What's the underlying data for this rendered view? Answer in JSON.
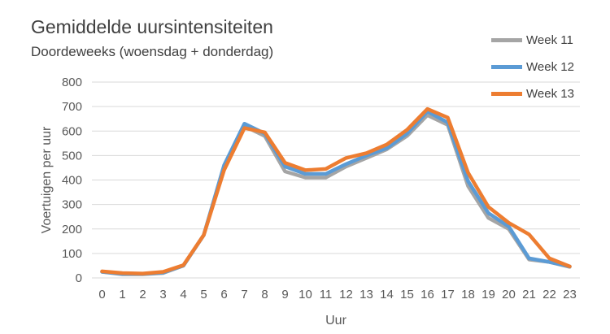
{
  "chart_data": {
    "type": "line",
    "title": "Gemiddelde uursintensiteiten",
    "subtitle": "Doordeweeks (woensdag + donderdag)",
    "xlabel": "Uur",
    "ylabel": "Voertuigen per uur",
    "ylim": [
      0,
      800
    ],
    "yticks": [
      0,
      100,
      200,
      300,
      400,
      500,
      600,
      700,
      800
    ],
    "grid": true,
    "legend_position": "top-right",
    "categories": [
      "0",
      "1",
      "2",
      "3",
      "4",
      "5",
      "6",
      "7",
      "8",
      "9",
      "10",
      "11",
      "12",
      "13",
      "14",
      "15",
      "16",
      "17",
      "18",
      "19",
      "20",
      "21",
      "22",
      "23"
    ],
    "series": [
      {
        "name": "Week 11",
        "color": "#A5A5A5",
        "values": [
          25,
          15,
          15,
          20,
          50,
          175,
          450,
          620,
          580,
          435,
          410,
          410,
          455,
          490,
          525,
          580,
          665,
          625,
          375,
          245,
          200,
          75,
          65,
          45
        ]
      },
      {
        "name": "Week 12",
        "color": "#5B9BD5",
        "values": [
          25,
          17,
          17,
          22,
          50,
          175,
          460,
          630,
          590,
          455,
          425,
          425,
          465,
          500,
          530,
          590,
          680,
          635,
          395,
          265,
          210,
          80,
          65,
          47
        ]
      },
      {
        "name": "Week 13",
        "color": "#ED7D31",
        "values": [
          27,
          20,
          18,
          25,
          52,
          175,
          440,
          612,
          595,
          470,
          440,
          445,
          490,
          510,
          545,
          605,
          690,
          655,
          430,
          290,
          225,
          178,
          80,
          47
        ]
      }
    ]
  }
}
